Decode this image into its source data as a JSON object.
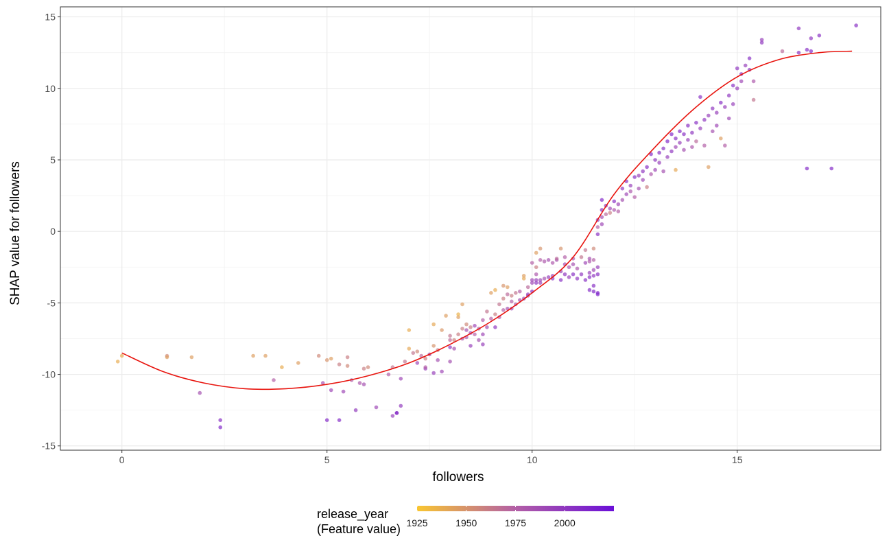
{
  "chart_data": {
    "type": "scatter",
    "xlabel": "followers",
    "ylabel": "SHAP value for followers",
    "xlim": [
      -1.5,
      18.5
    ],
    "ylim": [
      -15.3,
      15.7
    ],
    "x_ticks": [
      0,
      5,
      10,
      15
    ],
    "y_ticks": [
      -15,
      -10,
      -5,
      0,
      5,
      10,
      15
    ],
    "x_tick_labels": [
      "0",
      "5",
      "10",
      "15"
    ],
    "y_tick_labels": [
      "-15",
      "-10",
      "-5",
      "0",
      "5",
      "10",
      "15"
    ],
    "grid": true,
    "legend": {
      "title_line1": "release_year",
      "title_line2": "(Feature value)",
      "position": "bottom",
      "range": [
        1925,
        2025
      ],
      "ticks": [
        1925,
        1950,
        1975,
        2000
      ],
      "tick_labels": [
        "1925",
        "1950",
        "1975",
        "2000"
      ],
      "low_color": "#f9c631",
      "mid_color": "#b35fa6",
      "high_color": "#6a0fd8"
    },
    "trend_line": {
      "color": "#e8140e",
      "x": [
        0,
        1,
        2,
        3,
        4,
        5,
        6,
        7,
        8,
        9,
        10,
        11,
        12,
        13,
        14,
        15,
        16,
        17,
        17.8
      ],
      "y": [
        -8.5,
        -9.8,
        -10.6,
        -11.0,
        -11.0,
        -10.7,
        -10.1,
        -9.2,
        -7.9,
        -6.3,
        -4.3,
        -1.8,
        2.6,
        5.9,
        8.7,
        10.8,
        12.0,
        12.5,
        12.6
      ]
    },
    "points": [
      [
        -0.1,
        -9.1,
        1938
      ],
      [
        0.0,
        -8.7,
        1938
      ],
      [
        1.1,
        -8.7,
        1955
      ],
      [
        1.1,
        -8.8,
        1945
      ],
      [
        1.7,
        -8.8,
        1945
      ],
      [
        1.9,
        -11.3,
        1985
      ],
      [
        2.4,
        -13.2,
        2005
      ],
      [
        2.4,
        -13.7,
        2010
      ],
      [
        3.2,
        -8.7,
        1945
      ],
      [
        3.5,
        -8.7,
        1945
      ],
      [
        3.7,
        -10.4,
        1975
      ],
      [
        3.9,
        -9.5,
        1938
      ],
      [
        4.3,
        -9.2,
        1945
      ],
      [
        4.8,
        -8.7,
        1955
      ],
      [
        4.9,
        -10.6,
        1985
      ],
      [
        5.0,
        -9.0,
        1950
      ],
      [
        5.1,
        -8.9,
        1945
      ],
      [
        5.0,
        -13.2,
        2008
      ],
      [
        5.1,
        -11.1,
        1990
      ],
      [
        5.3,
        -13.2,
        2008
      ],
      [
        5.3,
        -9.3,
        1960
      ],
      [
        5.4,
        -11.2,
        1990
      ],
      [
        5.5,
        -9.4,
        1955
      ],
      [
        5.5,
        -8.8,
        1960
      ],
      [
        5.6,
        -10.4,
        1975
      ],
      [
        5.7,
        -12.5,
        1998
      ],
      [
        5.8,
        -10.6,
        1980
      ],
      [
        5.9,
        -10.7,
        1985
      ],
      [
        5.9,
        -9.6,
        1960
      ],
      [
        6.0,
        -9.5,
        1955
      ],
      [
        6.2,
        -12.3,
        1990
      ],
      [
        6.5,
        -10.0,
        1975
      ],
      [
        6.6,
        -12.9,
        1995
      ],
      [
        6.6,
        -9.5,
        1965
      ],
      [
        6.7,
        -12.7,
        2005
      ],
      [
        6.7,
        -12.7,
        2008
      ],
      [
        6.8,
        -12.2,
        1998
      ],
      [
        6.8,
        -10.3,
        1990
      ],
      [
        6.9,
        -9.1,
        1965
      ],
      [
        7.0,
        -8.2,
        1940
      ],
      [
        7.0,
        -6.9,
        1938
      ],
      [
        7.1,
        -8.5,
        1965
      ],
      [
        7.2,
        -8.4,
        1955
      ],
      [
        7.2,
        -9.2,
        1990
      ],
      [
        7.3,
        -8.7,
        1970
      ],
      [
        7.4,
        -9.6,
        1995
      ],
      [
        7.4,
        -8.9,
        1960
      ],
      [
        7.4,
        -9.5,
        1975
      ],
      [
        7.5,
        -8.6,
        1985
      ],
      [
        7.6,
        -9.9,
        1995
      ],
      [
        7.6,
        -8.0,
        1950
      ],
      [
        7.6,
        -6.5,
        1940
      ],
      [
        7.7,
        -9.0,
        1985
      ],
      [
        7.7,
        -8.3,
        1960
      ],
      [
        7.8,
        -9.8,
        1990
      ],
      [
        7.8,
        -6.9,
        1948
      ],
      [
        7.9,
        -5.9,
        1945
      ],
      [
        8.0,
        -7.6,
        1970
      ],
      [
        8.0,
        -9.1,
        1985
      ],
      [
        8.0,
        -7.3,
        1965
      ],
      [
        8.0,
        -8.1,
        2000
      ],
      [
        8.1,
        -7.6,
        1958
      ],
      [
        8.1,
        -8.2,
        1985
      ],
      [
        8.2,
        -6.0,
        1945
      ],
      [
        8.2,
        -7.2,
        1960
      ],
      [
        8.2,
        -5.8,
        1935
      ],
      [
        8.3,
        -5.1,
        1945
      ],
      [
        8.3,
        -7.5,
        1980
      ],
      [
        8.3,
        -6.8,
        1960
      ],
      [
        8.4,
        -6.5,
        1955
      ],
      [
        8.4,
        -6.9,
        1985
      ],
      [
        8.4,
        -7.4,
        1980
      ],
      [
        8.5,
        -8.0,
        1995
      ],
      [
        8.5,
        -7.1,
        1990
      ],
      [
        8.5,
        -6.7,
        1960
      ],
      [
        8.6,
        -7.2,
        1975
      ],
      [
        8.6,
        -6.6,
        1990
      ],
      [
        8.7,
        -7.6,
        1985
      ],
      [
        8.7,
        -6.8,
        1975
      ],
      [
        8.8,
        -7.9,
        1995
      ],
      [
        8.8,
        -7.2,
        1990
      ],
      [
        8.8,
        -6.2,
        1975
      ],
      [
        8.9,
        -5.6,
        1965
      ],
      [
        8.9,
        -6.7,
        1985
      ],
      [
        9.0,
        -6.1,
        1975
      ],
      [
        9.0,
        -4.3,
        1945
      ],
      [
        9.1,
        -5.8,
        1960
      ],
      [
        9.1,
        -6.7,
        2000
      ],
      [
        9.1,
        -4.1,
        1938
      ],
      [
        9.2,
        -6.0,
        1980
      ],
      [
        9.2,
        -5.1,
        1965
      ],
      [
        9.3,
        -5.5,
        1975
      ],
      [
        9.3,
        -4.7,
        1960
      ],
      [
        9.3,
        -3.8,
        1950
      ],
      [
        9.4,
        -5.4,
        1985
      ],
      [
        9.4,
        -4.4,
        1970
      ],
      [
        9.4,
        -3.9,
        1945
      ],
      [
        9.5,
        -5.4,
        1990
      ],
      [
        9.5,
        -4.9,
        1975
      ],
      [
        9.5,
        -4.5,
        1960
      ],
      [
        9.6,
        -5.1,
        1980
      ],
      [
        9.6,
        -4.3,
        1965
      ],
      [
        9.7,
        -4.8,
        1985
      ],
      [
        9.7,
        -4.2,
        1975
      ],
      [
        9.8,
        -4.7,
        1990
      ],
      [
        9.8,
        -3.1,
        1945
      ],
      [
        9.8,
        -3.3,
        1940
      ],
      [
        9.9,
        -4.5,
        1985
      ],
      [
        9.9,
        -3.9,
        1970
      ],
      [
        9.9,
        -4.4,
        1995
      ],
      [
        10.0,
        -4.2,
        2005
      ],
      [
        10.0,
        -3.6,
        1990
      ],
      [
        10.0,
        -2.2,
        1975
      ],
      [
        10.0,
        -3.4,
        1990
      ],
      [
        10.1,
        -1.5,
        1945
      ],
      [
        10.1,
        -2.5,
        1960
      ],
      [
        10.1,
        -3.6,
        2000
      ],
      [
        10.1,
        -3.4,
        1995
      ],
      [
        10.1,
        -3.0,
        1980
      ],
      [
        10.2,
        -1.2,
        1950
      ],
      [
        10.2,
        -2.0,
        1975
      ],
      [
        10.2,
        -3.6,
        1995
      ],
      [
        10.2,
        -3.4,
        1990
      ],
      [
        10.3,
        -2.1,
        1980
      ],
      [
        10.3,
        -3.3,
        1985
      ],
      [
        10.4,
        -2.0,
        1985
      ],
      [
        10.4,
        -3.2,
        1995
      ],
      [
        10.5,
        -3.3,
        2000
      ],
      [
        10.5,
        -2.2,
        1980
      ],
      [
        10.5,
        -3.1,
        1990
      ],
      [
        10.6,
        -2.0,
        1985
      ],
      [
        10.6,
        -1.9,
        1970
      ],
      [
        10.7,
        -3.4,
        2005
      ],
      [
        10.7,
        -2.8,
        1990
      ],
      [
        10.7,
        -1.2,
        1950
      ],
      [
        10.8,
        -3.0,
        2000
      ],
      [
        10.8,
        -2.3,
        1985
      ],
      [
        10.8,
        -1.8,
        1975
      ],
      [
        10.9,
        -3.2,
        1995
      ],
      [
        10.9,
        -2.5,
        1980
      ],
      [
        11.0,
        -3.0,
        2005
      ],
      [
        11.0,
        -2.3,
        1985
      ],
      [
        11.0,
        -1.9,
        1980
      ],
      [
        11.1,
        -3.3,
        2000
      ],
      [
        11.1,
        -2.6,
        1980
      ],
      [
        11.2,
        -1.8,
        1965
      ],
      [
        11.2,
        -3.0,
        2000
      ],
      [
        11.3,
        -3.4,
        2005
      ],
      [
        11.3,
        -2.2,
        1990
      ],
      [
        11.3,
        -1.3,
        1965
      ],
      [
        11.4,
        -3.2,
        2005
      ],
      [
        11.4,
        -2.9,
        1995
      ],
      [
        11.4,
        -1.9,
        1985
      ],
      [
        11.4,
        -2.1,
        1980
      ],
      [
        11.5,
        -3.1,
        2000
      ],
      [
        11.5,
        -1.2,
        1955
      ],
      [
        11.5,
        -2.7,
        1990
      ],
      [
        11.6,
        -3.0,
        2005
      ],
      [
        11.6,
        -2.5,
        1995
      ],
      [
        11.6,
        -4.3,
        2010
      ],
      [
        11.6,
        -4.4,
        2012
      ],
      [
        11.5,
        -4.2,
        2010
      ],
      [
        11.4,
        -4.1,
        2008
      ],
      [
        11.5,
        -3.8,
        2005
      ],
      [
        11.5,
        -2.0,
        1975
      ],
      [
        11.6,
        -0.2,
        2005
      ],
      [
        11.6,
        0.3,
        1975
      ],
      [
        11.6,
        0.8,
        2000
      ],
      [
        11.7,
        0.5,
        1990
      ],
      [
        11.7,
        1.0,
        1985
      ],
      [
        11.7,
        1.5,
        2005
      ],
      [
        11.7,
        2.2,
        2010
      ],
      [
        11.8,
        1.2,
        1970
      ],
      [
        11.8,
        1.8,
        2000
      ],
      [
        11.9,
        1.3,
        1960
      ],
      [
        11.9,
        1.6,
        1990
      ],
      [
        12.0,
        1.5,
        1980
      ],
      [
        12.0,
        2.1,
        2005
      ],
      [
        12.1,
        1.4,
        1975
      ],
      [
        12.1,
        1.9,
        1990
      ],
      [
        12.2,
        2.2,
        1985
      ],
      [
        12.2,
        3.0,
        2000
      ],
      [
        12.3,
        2.6,
        1990
      ],
      [
        12.3,
        3.5,
        2005
      ],
      [
        12.4,
        2.8,
        1980
      ],
      [
        12.4,
        3.2,
        1995
      ],
      [
        12.5,
        2.4,
        1975
      ],
      [
        12.5,
        3.8,
        2005
      ],
      [
        12.6,
        3.0,
        1985
      ],
      [
        12.6,
        3.9,
        1995
      ],
      [
        12.7,
        3.6,
        1990
      ],
      [
        12.7,
        4.2,
        2000
      ],
      [
        12.8,
        3.1,
        1960
      ],
      [
        12.8,
        4.5,
        2005
      ],
      [
        12.9,
        4.0,
        1980
      ],
      [
        12.9,
        5.4,
        2008
      ],
      [
        13.0,
        4.3,
        1990
      ],
      [
        13.0,
        5.0,
        2000
      ],
      [
        13.1,
        4.8,
        1995
      ],
      [
        13.1,
        5.5,
        2005
      ],
      [
        13.2,
        4.2,
        1985
      ],
      [
        13.2,
        5.8,
        2005
      ],
      [
        13.3,
        5.2,
        1995
      ],
      [
        13.3,
        6.3,
        2010
      ],
      [
        13.4,
        5.6,
        2000
      ],
      [
        13.4,
        6.8,
        2010
      ],
      [
        13.5,
        5.9,
        1990
      ],
      [
        13.5,
        6.5,
        2005
      ],
      [
        13.5,
        4.3,
        1940
      ],
      [
        13.6,
        6.2,
        1995
      ],
      [
        13.6,
        7.0,
        2008
      ],
      [
        13.7,
        5.7,
        1985
      ],
      [
        13.7,
        6.8,
        2005
      ],
      [
        13.8,
        6.4,
        1995
      ],
      [
        13.8,
        7.4,
        2005
      ],
      [
        13.9,
        5.9,
        1980
      ],
      [
        13.9,
        6.9,
        2000
      ],
      [
        14.0,
        6.3,
        1970
      ],
      [
        14.0,
        7.6,
        2005
      ],
      [
        14.1,
        7.2,
        1995
      ],
      [
        14.1,
        9.4,
        2005
      ],
      [
        14.2,
        6.0,
        1975
      ],
      [
        14.2,
        7.8,
        2000
      ],
      [
        14.3,
        4.5,
        1945
      ],
      [
        14.3,
        8.1,
        1995
      ],
      [
        14.4,
        7.0,
        1985
      ],
      [
        14.4,
        8.6,
        2000
      ],
      [
        14.5,
        7.4,
        1990
      ],
      [
        14.5,
        8.3,
        1995
      ],
      [
        14.6,
        6.5,
        1945
      ],
      [
        14.6,
        9.0,
        2005
      ],
      [
        14.7,
        8.7,
        1995
      ],
      [
        14.7,
        6.0,
        1975
      ],
      [
        14.8,
        9.5,
        2000
      ],
      [
        14.8,
        7.9,
        1990
      ],
      [
        14.9,
        8.9,
        1995
      ],
      [
        14.9,
        10.2,
        2005
      ],
      [
        15.0,
        10.0,
        1995
      ],
      [
        15.0,
        11.4,
        2000
      ],
      [
        15.1,
        10.5,
        1990
      ],
      [
        15.1,
        11.0,
        2005
      ],
      [
        15.2,
        11.6,
        1995
      ],
      [
        15.3,
        11.3,
        2000
      ],
      [
        15.3,
        12.1,
        2005
      ],
      [
        15.4,
        9.2,
        1965
      ],
      [
        15.4,
        10.5,
        1980
      ],
      [
        15.6,
        13.2,
        2000
      ],
      [
        15.6,
        13.4,
        1995
      ],
      [
        16.1,
        12.6,
        1970
      ],
      [
        16.5,
        12.5,
        2005
      ],
      [
        16.5,
        14.2,
        2000
      ],
      [
        16.7,
        12.7,
        2005
      ],
      [
        16.8,
        13.5,
        2000
      ],
      [
        16.8,
        12.6,
        2008
      ],
      [
        17.0,
        13.7,
        2005
      ],
      [
        17.9,
        14.4,
        2005
      ],
      [
        16.7,
        4.4,
        2008
      ],
      [
        17.3,
        4.4,
        2008
      ]
    ]
  }
}
